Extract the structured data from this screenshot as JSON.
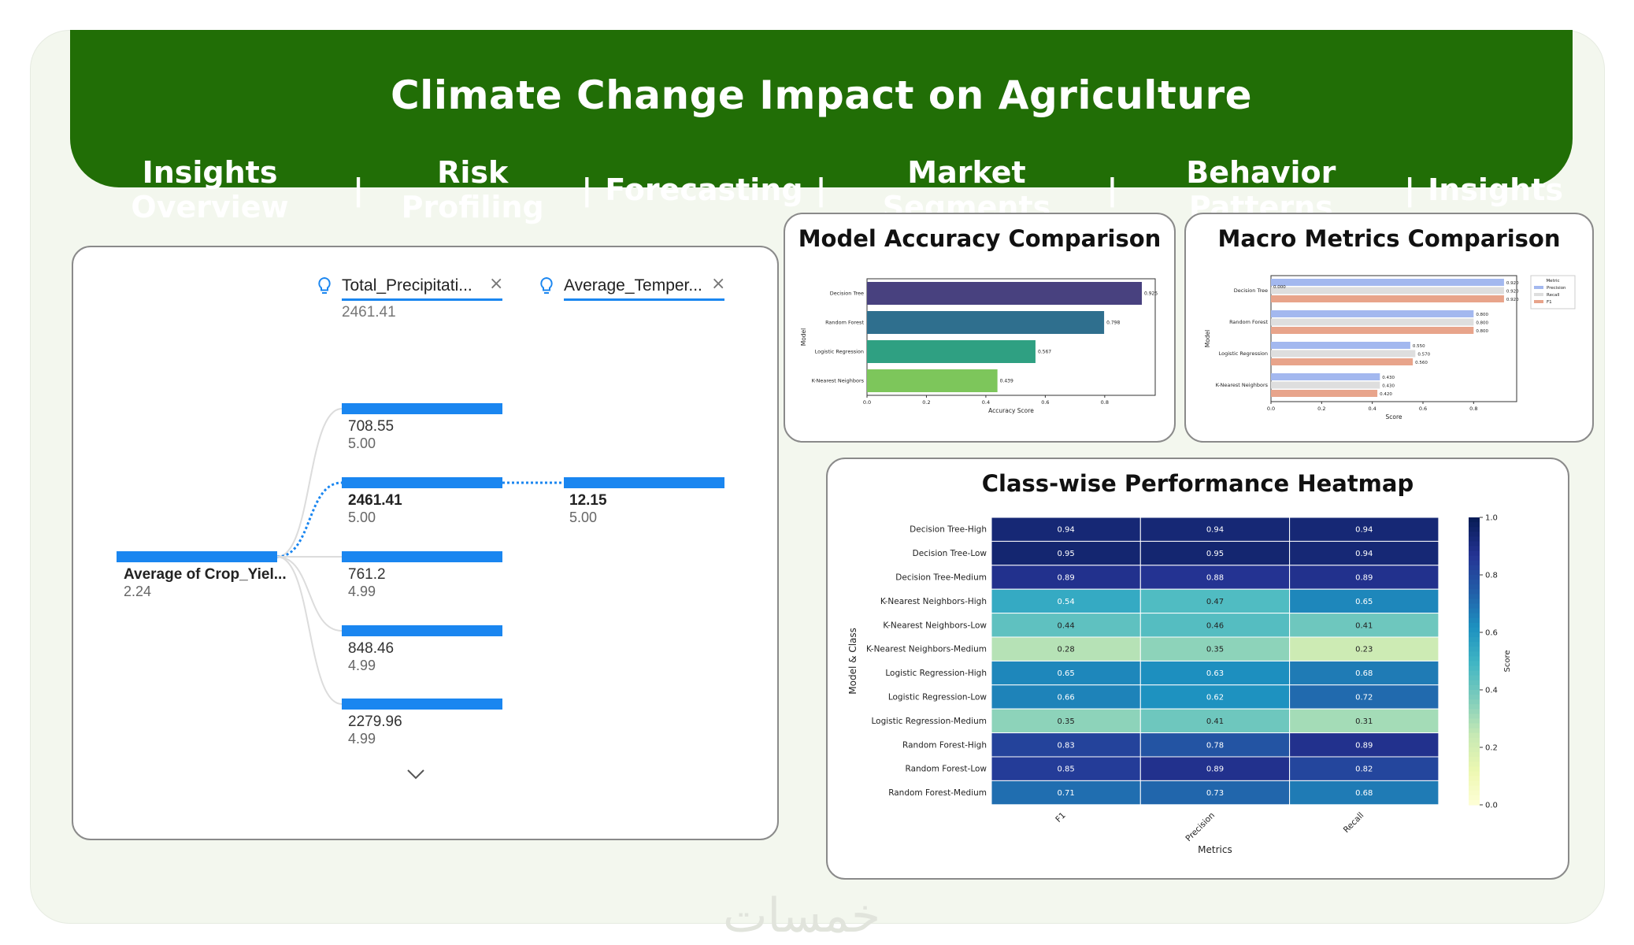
{
  "header": {
    "title": "Climate Change Impact on Agriculture",
    "nav": [
      "Insights Overview",
      "Risk Profiling",
      "Forecasting",
      "Market Segments",
      "Behavior Patterns",
      "Insights"
    ],
    "separator": "|"
  },
  "tree": {
    "root": {
      "label": "Average of Crop_Yiel...",
      "value": "2.24"
    },
    "fields": [
      {
        "label": "Total_Precipitati...",
        "value": "2461.41"
      },
      {
        "label": "Average_Temper...",
        "value": ""
      }
    ],
    "level1": [
      {
        "value": "708.55",
        "sub": "5.00"
      },
      {
        "value": "2461.41",
        "sub": "5.00"
      },
      {
        "value": "761.2",
        "sub": "4.99"
      },
      {
        "value": "848.46",
        "sub": "4.99"
      },
      {
        "value": "2279.96",
        "sub": "4.99"
      }
    ],
    "level2": {
      "value": "12.15",
      "sub": "5.00"
    },
    "close_icon": "close-icon",
    "lightbulb_icon": "lightbulb-icon",
    "more_icon": "chevron-down-icon",
    "bar_color": "#1a86f0"
  },
  "chart_data": [
    {
      "type": "bar",
      "orientation": "horizontal",
      "title": "Model Accuracy Comparison",
      "categories": [
        "Decision Tree",
        "Random Forest",
        "Logistic Regression",
        "K-Nearest Neighbors"
      ],
      "values": [
        0.925,
        0.798,
        0.567,
        0.439
      ],
      "data_labels": [
        "0.925",
        "0.798",
        "0.567",
        "0.439"
      ],
      "colors": [
        "#48417f",
        "#2f6f8e",
        "#2fa082",
        "#7dc65b"
      ],
      "xlabel": "Accuracy Score",
      "ylabel": "Model",
      "xlim": [
        0,
        0.97
      ],
      "xticks": [
        "0.0",
        "0.2",
        "0.4",
        "0.6",
        "0.8"
      ]
    },
    {
      "type": "bar",
      "orientation": "horizontal",
      "title": "Macro Metrics Comparison",
      "categories": [
        "Decision Tree",
        "Random Forest",
        "Logistic Regression",
        "K-Nearest Neighbors"
      ],
      "series": [
        {
          "name": "Precision",
          "values": [
            0.92,
            0.8,
            0.55,
            0.43
          ],
          "labels": [
            "0.920",
            "0.800",
            "0.550",
            "0.430"
          ],
          "color": "#a3b8ef"
        },
        {
          "name": "Recall",
          "values": [
            0.92,
            0.8,
            0.57,
            0.43
          ],
          "labels": [
            "0.920",
            "0.800",
            "0.570",
            "0.430"
          ],
          "color": "#dedede"
        },
        {
          "name": "F1",
          "values": [
            0.92,
            0.8,
            0.56,
            0.42
          ],
          "labels": [
            "0.920",
            "0.800",
            "0.560",
            "0.420"
          ],
          "color": "#e8a48b"
        }
      ],
      "extra_label": "0.000",
      "legend_title": "Metric",
      "legend_position": "top-right",
      "xlabel": "Score",
      "ylabel": "Model",
      "xlim": [
        0,
        0.97
      ],
      "xticks": [
        "0.0",
        "0.2",
        "0.4",
        "0.6",
        "0.8"
      ]
    },
    {
      "type": "heatmap",
      "title": "Class-wise Performance Heatmap",
      "rows": [
        "Decision Tree-High",
        "Decision Tree-Low",
        "Decision Tree-Medium",
        "K-Nearest Neighbors-High",
        "K-Nearest Neighbors-Low",
        "K-Nearest Neighbors-Medium",
        "Logistic Regression-High",
        "Logistic Regression-Low",
        "Logistic Regression-Medium",
        "Random Forest-High",
        "Random Forest-Low",
        "Random Forest-Medium"
      ],
      "columns": [
        "F1",
        "Precision",
        "Recall"
      ],
      "values": [
        [
          0.94,
          0.94,
          0.94
        ],
        [
          0.95,
          0.95,
          0.94
        ],
        [
          0.89,
          0.88,
          0.89
        ],
        [
          0.54,
          0.47,
          0.65
        ],
        [
          0.44,
          0.46,
          0.41
        ],
        [
          0.28,
          0.35,
          0.23
        ],
        [
          0.65,
          0.63,
          0.68
        ],
        [
          0.66,
          0.62,
          0.72
        ],
        [
          0.35,
          0.41,
          0.31
        ],
        [
          0.83,
          0.78,
          0.89
        ],
        [
          0.85,
          0.89,
          0.82
        ],
        [
          0.71,
          0.73,
          0.68
        ]
      ],
      "xlabel": "Metrics",
      "ylabel": "Model & Class",
      "colorbar_label": "Score",
      "colorbar_ticks": [
        "0.0",
        "0.2",
        "0.4",
        "0.6",
        "0.8",
        "1.0"
      ],
      "colormap": "YlGnBu",
      "vmin": 0,
      "vmax": 1
    }
  ],
  "watermark": "خمسات"
}
